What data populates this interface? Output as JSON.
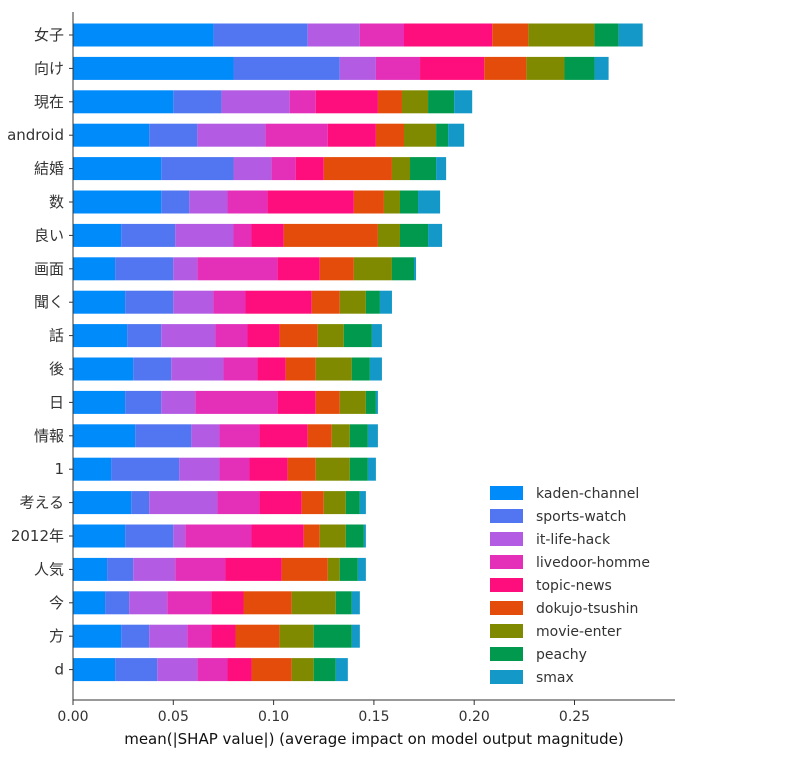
{
  "chart_data": {
    "type": "bar",
    "orientation": "horizontal",
    "stacked": true,
    "title": "",
    "xlabel": "mean(|SHAP value|) (average impact on model output magnitude)",
    "ylabel": "",
    "xlim": [
      0.0,
      0.3
    ],
    "xticks": [
      "0.00",
      "0.05",
      "0.10",
      "0.15",
      "0.20",
      "0.25"
    ],
    "grid": false,
    "legend_position": "bottom-right",
    "categories": [
      "女子",
      "向け",
      "現在",
      "android",
      "結婚",
      "数",
      "良い",
      "画面",
      "聞く",
      "話",
      "後",
      "日",
      "情報",
      "1",
      "考える",
      "2012年",
      "人気",
      "今",
      "方",
      "d"
    ],
    "series": [
      {
        "name": "kaden-channel",
        "color": "#008bfb",
        "values": [
          0.07,
          0.08,
          0.05,
          0.038,
          0.044,
          0.044,
          0.024,
          0.021,
          0.026,
          0.027,
          0.03,
          0.026,
          0.031,
          0.019,
          0.029,
          0.026,
          0.017,
          0.016,
          0.024,
          0.021
        ]
      },
      {
        "name": "sports-watch",
        "color": "#5275f1",
        "values": [
          0.047,
          0.053,
          0.024,
          0.024,
          0.036,
          0.014,
          0.027,
          0.029,
          0.024,
          0.017,
          0.019,
          0.018,
          0.028,
          0.034,
          0.009,
          0.024,
          0.013,
          0.012,
          0.014,
          0.021
        ]
      },
      {
        "name": "it-life-hack",
        "color": "#b35ce3",
        "values": [
          0.026,
          0.018,
          0.034,
          0.034,
          0.019,
          0.019,
          0.029,
          0.012,
          0.02,
          0.027,
          0.026,
          0.017,
          0.014,
          0.02,
          0.034,
          0.006,
          0.021,
          0.019,
          0.019,
          0.02
        ]
      },
      {
        "name": "livedoor-homme",
        "color": "#e42fb9",
        "values": [
          0.022,
          0.022,
          0.013,
          0.031,
          0.012,
          0.02,
          0.009,
          0.04,
          0.016,
          0.016,
          0.017,
          0.041,
          0.02,
          0.015,
          0.021,
          0.033,
          0.025,
          0.022,
          0.012,
          0.015
        ]
      },
      {
        "name": "topic-news",
        "color": "#fe0d7c",
        "values": [
          0.044,
          0.032,
          0.031,
          0.024,
          0.014,
          0.043,
          0.016,
          0.021,
          0.033,
          0.016,
          0.014,
          0.019,
          0.024,
          0.019,
          0.021,
          0.026,
          0.028,
          0.016,
          0.012,
          0.012
        ]
      },
      {
        "name": "dokujo-tsushin",
        "color": "#e44c0b",
        "values": [
          0.018,
          0.021,
          0.012,
          0.014,
          0.034,
          0.015,
          0.047,
          0.017,
          0.014,
          0.019,
          0.015,
          0.012,
          0.012,
          0.014,
          0.011,
          0.008,
          0.023,
          0.024,
          0.022,
          0.02
        ]
      },
      {
        "name": "movie-enter",
        "color": "#808a00",
        "values": [
          0.033,
          0.019,
          0.013,
          0.016,
          0.009,
          0.008,
          0.011,
          0.019,
          0.013,
          0.013,
          0.018,
          0.013,
          0.009,
          0.017,
          0.011,
          0.013,
          0.006,
          0.022,
          0.017,
          0.011
        ]
      },
      {
        "name": "peachy",
        "color": "#00994e",
        "values": [
          0.012,
          0.015,
          0.013,
          0.006,
          0.013,
          0.009,
          0.014,
          0.011,
          0.007,
          0.014,
          0.009,
          0.005,
          0.009,
          0.009,
          0.007,
          0.009,
          0.009,
          0.008,
          0.019,
          0.011
        ]
      },
      {
        "name": "smax",
        "color": "#1398c8",
        "values": [
          0.012,
          0.007,
          0.009,
          0.008,
          0.005,
          0.011,
          0.007,
          0.001,
          0.006,
          0.005,
          0.006,
          0.001,
          0.005,
          0.004,
          0.003,
          0.001,
          0.004,
          0.004,
          0.004,
          0.006
        ]
      }
    ]
  }
}
